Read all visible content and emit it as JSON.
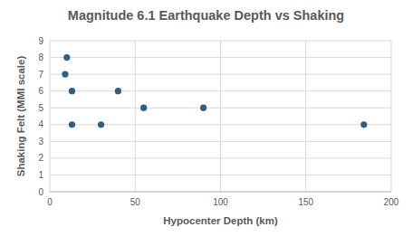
{
  "chart_data": {
    "type": "scatter",
    "title": "Magnitude 6.1 Earthquake Depth vs Shaking",
    "x_label": "Hypocenter Depth (km)",
    "y_label": "Shaking Felt (MMI scale)",
    "x": [
      10,
      9,
      13,
      13,
      30,
      40,
      55,
      90,
      184
    ],
    "values": [
      8,
      7,
      6,
      4,
      4,
      6,
      5,
      5,
      4
    ],
    "color": "#2e5e80",
    "marker": "circle",
    "xlim": [
      0,
      200
    ],
    "xticks": [
      0,
      50,
      100,
      150,
      200
    ],
    "ylim": [
      0,
      9
    ],
    "yticks": [
      0,
      1,
      2,
      3,
      4,
      5,
      6,
      7,
      8,
      9
    ],
    "grid": true
  }
}
